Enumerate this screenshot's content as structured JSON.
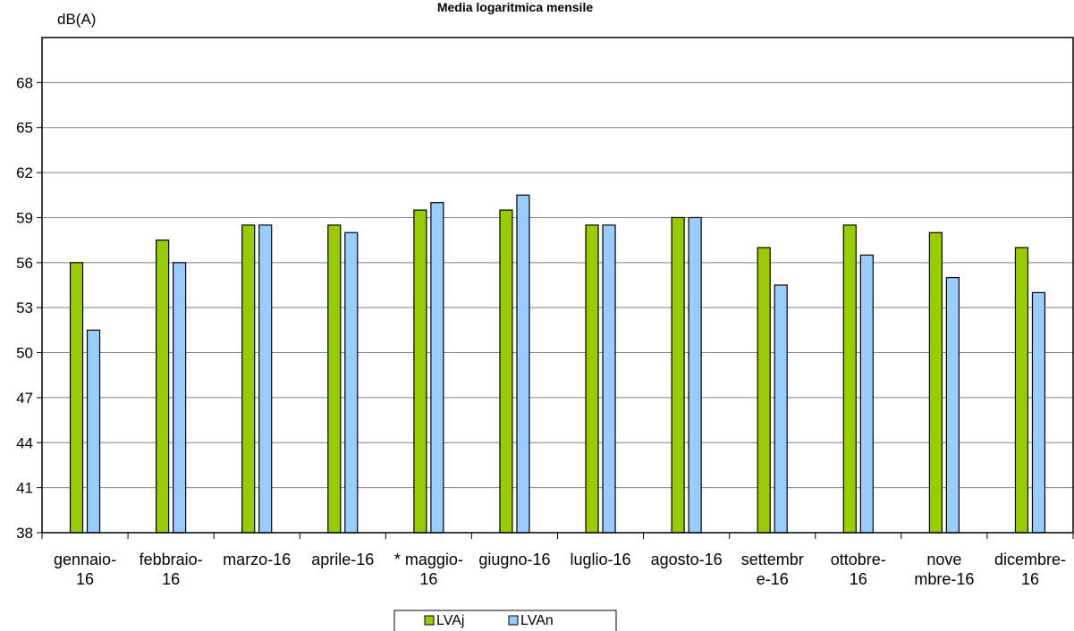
{
  "chart_data": {
    "type": "bar",
    "title": "Media logaritmica mensile",
    "ylabel": "dB(A)",
    "xlabel": "",
    "ylim": [
      38,
      71
    ],
    "yticks": [
      38,
      41,
      44,
      47,
      50,
      53,
      56,
      59,
      62,
      65,
      68
    ],
    "grid": true,
    "legend_position": "bottom",
    "categories": [
      [
        "gennaio-",
        "16"
      ],
      [
        "febbraio-",
        "16"
      ],
      [
        "marzo-16"
      ],
      [
        "aprile-16"
      ],
      [
        "* maggio-",
        "16"
      ],
      [
        "giugno-16"
      ],
      [
        "luglio-16"
      ],
      [
        "agosto-16"
      ],
      [
        "settembr",
        "e-16"
      ],
      [
        "ottobre-",
        "16"
      ],
      [
        "nove",
        "mbre-16"
      ],
      [
        "dicembre-",
        "16"
      ]
    ],
    "series": [
      {
        "name": "LVAj",
        "color": "#99cc00",
        "values": [
          56,
          57.5,
          58.5,
          58.5,
          59.5,
          59.5,
          58.5,
          59,
          57,
          58.5,
          58,
          57
        ]
      },
      {
        "name": "LVAn",
        "color": "#99ccff",
        "values": [
          51.5,
          56,
          58.5,
          58,
          60,
          60.5,
          58.5,
          59,
          54.5,
          56.5,
          55,
          54
        ]
      }
    ]
  }
}
